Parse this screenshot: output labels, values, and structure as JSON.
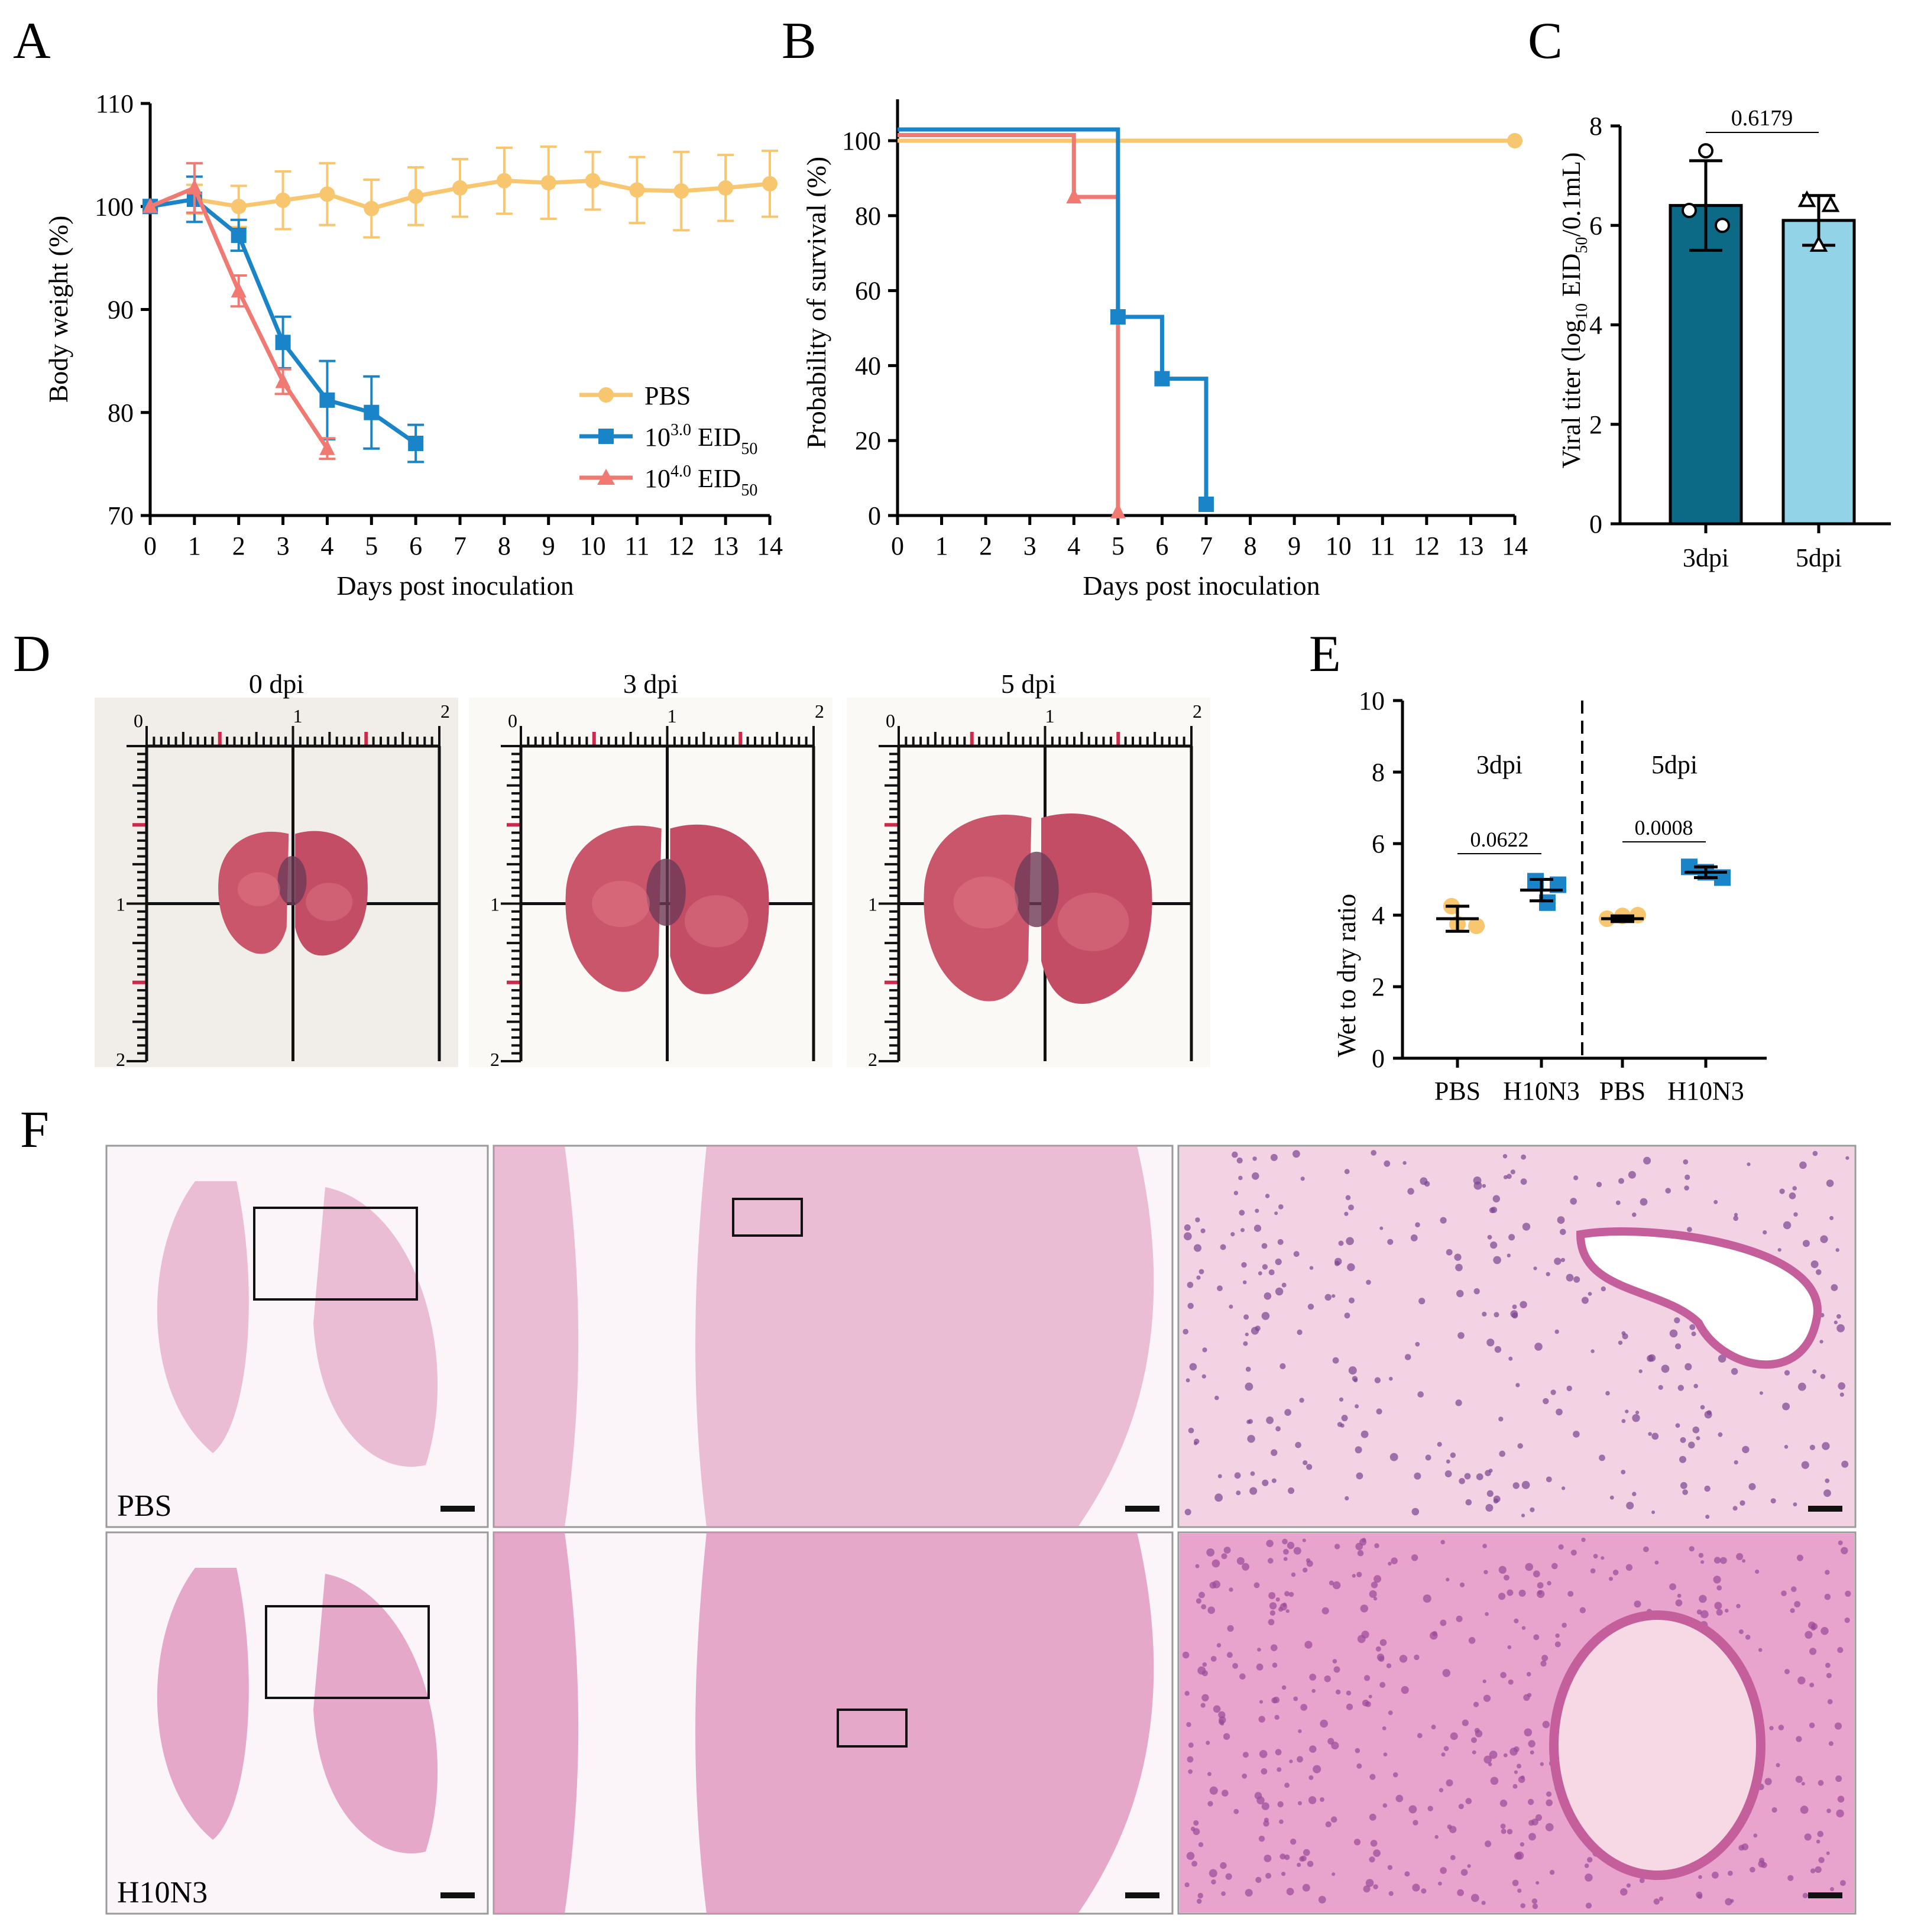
{
  "panel_labels": {
    "A": "A",
    "B": "B",
    "C": "C",
    "D": "D",
    "E": "E",
    "F": "F"
  },
  "colors": {
    "pbs": "#f7c66e",
    "low": "#1a84c8",
    "high": "#f07a72",
    "c_bar1": "#0c6a86",
    "c_bar2": "#93d3e8",
    "d_bg": "#f5f2ee",
    "lung": "#c9566a",
    "ruler_red": "#cc2a48",
    "he_bg": "#fbf4f8",
    "he_tissue": "#dd8fb8",
    "he_dense": "#9a4a98"
  },
  "chart_data": [
    {
      "panel": "A",
      "type": "line",
      "xlabel": "Days post inoculation",
      "ylabel": "Body weight (%)",
      "xlim": [
        0,
        14
      ],
      "ylim": [
        70,
        110
      ],
      "xticks": [
        0,
        1,
        2,
        3,
        4,
        5,
        6,
        7,
        8,
        9,
        10,
        11,
        12,
        13,
        14
      ],
      "yticks": [
        70,
        80,
        90,
        100,
        110
      ],
      "series": [
        {
          "name": "PBS",
          "marker": "circle",
          "color": "#f7c66e",
          "x": [
            0,
            1,
            2,
            3,
            4,
            5,
            6,
            7,
            8,
            9,
            10,
            11,
            12,
            13,
            14
          ],
          "values": [
            100,
            100.7,
            100.0,
            100.6,
            101.2,
            99.8,
            101.0,
            101.8,
            102.5,
            102.3,
            102.5,
            101.6,
            101.5,
            101.8,
            102.2
          ],
          "err": [
            0,
            1.4,
            2.0,
            2.8,
            3.0,
            2.8,
            2.8,
            2.8,
            3.2,
            3.5,
            2.8,
            3.2,
            3.8,
            3.2,
            3.2
          ]
        },
        {
          "name": "10",
          "sup": "3.0",
          "after": " EID",
          "sub": "50",
          "marker": "square",
          "color": "#1a84c8",
          "x": [
            0,
            1,
            2,
            3,
            4,
            5,
            6
          ],
          "values": [
            100,
            100.7,
            97.2,
            86.8,
            81.2,
            80.0,
            77.0
          ],
          "err": [
            0,
            2.2,
            1.5,
            2.5,
            3.8,
            3.5,
            1.8
          ]
        },
        {
          "name": "10",
          "sup": "4.0",
          "after": " EID",
          "sub": "50",
          "marker": "triangle",
          "color": "#f07a72",
          "x": [
            0,
            1,
            2,
            3,
            4
          ],
          "values": [
            100,
            101.8,
            91.8,
            83.0,
            76.5
          ],
          "err": [
            0,
            2.4,
            1.5,
            1.2,
            1.0
          ]
        }
      ]
    },
    {
      "panel": "B",
      "type": "line",
      "xlabel": "Days post inoculation",
      "ylabel": "Probability of survival  (%)",
      "xlim": [
        0,
        14
      ],
      "ylim": [
        0,
        110
      ],
      "xticks": [
        0,
        1,
        2,
        3,
        4,
        5,
        6,
        7,
        8,
        9,
        10,
        11,
        12,
        13,
        14
      ],
      "yticks": [
        0,
        20,
        40,
        60,
        80,
        100
      ],
      "series": [
        {
          "name": "PBS",
          "color": "#f7c66e",
          "marker": "circle",
          "steps": [
            [
              0,
              100
            ],
            [
              14,
              100
            ]
          ],
          "markers": [
            [
              14,
              100
            ]
          ]
        },
        {
          "name": "10^3.0 EID50",
          "color": "#1a84c8",
          "marker": "square",
          "steps": [
            [
              0,
              103
            ],
            [
              5,
              103
            ],
            [
              5,
              53
            ],
            [
              6,
              53
            ],
            [
              6,
              36.5
            ],
            [
              7,
              36.5
            ],
            [
              7,
              3
            ]
          ],
          "markers": [
            [
              5,
              53
            ],
            [
              6,
              36.5
            ],
            [
              7,
              3
            ]
          ]
        },
        {
          "name": "10^4.0 EID50",
          "color": "#f07a72",
          "marker": "triangle",
          "steps": [
            [
              0,
              101.5
            ],
            [
              4,
              101.5
            ],
            [
              4,
              85
            ],
            [
              5,
              85
            ],
            [
              5,
              1
            ]
          ],
          "markers": [
            [
              4,
              85
            ],
            [
              5,
              1
            ]
          ]
        }
      ]
    },
    {
      "panel": "C",
      "type": "bar",
      "ylabel_main": "Viral titer (log",
      "ylabel_sub": "10",
      "ylabel_mid": " EID",
      "ylabel_sub2": "50",
      "ylabel_end": "/0.1mL)",
      "categories": [
        "3dpi",
        "5dpi"
      ],
      "values": [
        6.4,
        6.1
      ],
      "sd": [
        0.9,
        0.5
      ],
      "ylim": [
        0,
        8
      ],
      "yticks": [
        0,
        2,
        4,
        6,
        8
      ],
      "points": [
        [
          7.5,
          6.3,
          6.0
        ],
        [
          6.5,
          6.4,
          5.6
        ]
      ],
      "pvalue": "0.6179"
    },
    {
      "panel": "E",
      "type": "scatter",
      "ylabel": "Wet to dry ratio",
      "ylim": [
        0,
        10
      ],
      "yticks": [
        0,
        2,
        4,
        6,
        8,
        10
      ],
      "categories": [
        "PBS",
        "H10N3",
        "PBS",
        "H10N3"
      ],
      "group_labels": [
        "3dpi",
        "5dpi"
      ],
      "means": [
        3.9,
        4.7,
        3.9,
        5.2
      ],
      "sd": [
        0.35,
        0.3,
        0.08,
        0.15
      ],
      "points": [
        [
          4.25,
          3.75,
          3.7
        ],
        [
          4.95,
          4.85,
          4.35
        ],
        [
          3.9,
          3.98,
          4.0
        ],
        [
          5.35,
          5.05,
          5.2
        ]
      ],
      "pvalues": [
        "0.0622",
        "0.0008"
      ]
    }
  ],
  "panel_d": {
    "titles": [
      "0 dpi",
      "3 dpi",
      "5 dpi"
    ],
    "ruler_numbers": [
      "0",
      "1",
      "2"
    ]
  },
  "panel_f": {
    "row_labels": [
      "PBS",
      "H10N3"
    ]
  }
}
